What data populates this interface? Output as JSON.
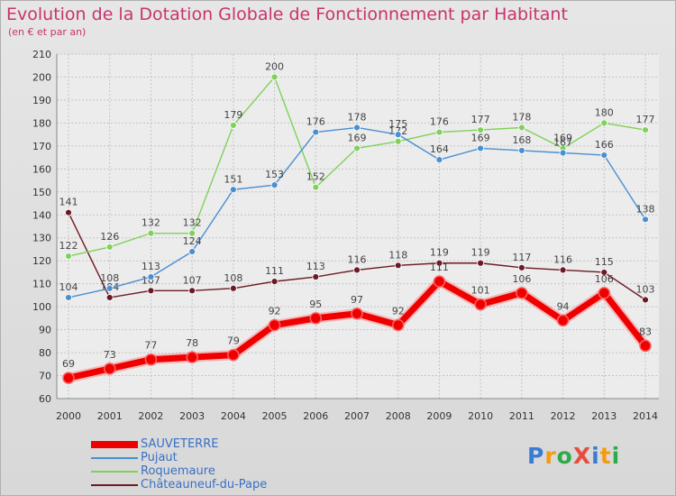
{
  "header": {
    "title": "Evolution de la Dotation Globale de Fonctionnement par Habitant",
    "subtitle": "(en € et par an)"
  },
  "logo": {
    "text": "ProXiti",
    "colors": [
      "#3a7bd5",
      "#f39c12",
      "#2eaa4a",
      "#e74c3c",
      "#3a7bd5",
      "#f39c12",
      "#2eaa4a"
    ]
  },
  "chart_data": {
    "type": "line",
    "x": [
      "2000",
      "2001",
      "2002",
      "2003",
      "2004",
      "2005",
      "2006",
      "2007",
      "2008",
      "2009",
      "2010",
      "2011",
      "2012",
      "2013",
      "2014"
    ],
    "ylim": [
      60,
      210
    ],
    "yticks": [
      60,
      70,
      80,
      90,
      100,
      110,
      120,
      130,
      140,
      150,
      160,
      170,
      180,
      190,
      200,
      210
    ],
    "grid": true,
    "legend_placement": "bottom-left",
    "series": [
      {
        "name": "SAUVETERRE",
        "color": "#ee0000",
        "highlight": true,
        "values": [
          69,
          73,
          77,
          78,
          79,
          92,
          95,
          97,
          92,
          111,
          101,
          106,
          94,
          106,
          83
        ]
      },
      {
        "name": "Pujaut",
        "color": "#4a8fcf",
        "values": [
          104,
          108,
          113,
          124,
          151,
          153,
          176,
          178,
          175,
          164,
          169,
          168,
          167,
          166,
          138
        ]
      },
      {
        "name": "Roquemaure",
        "color": "#7fd15a",
        "values": [
          122,
          126,
          132,
          132,
          179,
          200,
          152,
          169,
          172,
          176,
          177,
          178,
          169,
          180,
          177
        ]
      },
      {
        "name": "Châteauneuf-du-Pape",
        "color": "#6b1a24",
        "values": [
          141,
          104,
          107,
          107,
          108,
          111,
          113,
          116,
          118,
          119,
          119,
          117,
          116,
          115,
          103
        ]
      }
    ]
  }
}
